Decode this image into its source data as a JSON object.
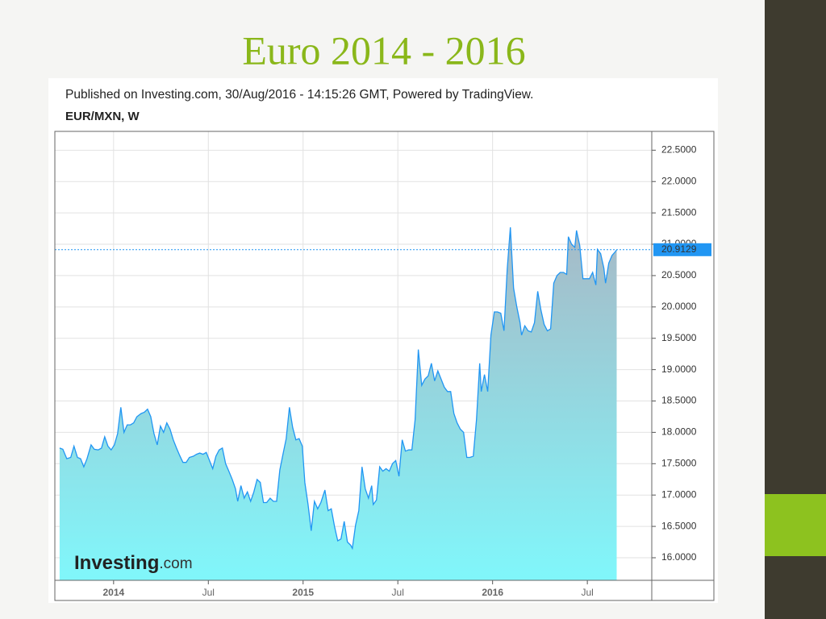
{
  "slide_title": "Euro 2014 - 2016",
  "chart_data": {
    "type": "area",
    "title": "Published on Investing.com, 30/Aug/2016 - 14:15:26 GMT, Powered by TradingView.",
    "subtitle": "EUR/MXN, W",
    "watermark": [
      "Investing",
      ".com"
    ],
    "color": "#2196f3",
    "grid": true,
    "xlim": [
      2013.69,
      2016.84
    ],
    "xticks": [
      {
        "value": 2014,
        "label": "2014"
      },
      {
        "value": 2014.5,
        "label": "Jul"
      },
      {
        "value": 2015,
        "label": "2015"
      },
      {
        "value": 2015.5,
        "label": "Jul"
      },
      {
        "value": 2016,
        "label": "2016"
      },
      {
        "value": 2016.5,
        "label": "Jul"
      }
    ],
    "ylim": [
      15.64,
      22.8
    ],
    "yticks": [
      {
        "value": 16,
        "label": "16.0000"
      },
      {
        "value": 16.5,
        "label": "16.5000"
      },
      {
        "value": 17,
        "label": "17.0000"
      },
      {
        "value": 17.5,
        "label": "17.5000"
      },
      {
        "value": 18,
        "label": "18.0000"
      },
      {
        "value": 18.5,
        "label": "18.5000"
      },
      {
        "value": 19,
        "label": "19.0000"
      },
      {
        "value": 19.5,
        "label": "19.5000"
      },
      {
        "value": 20,
        "label": "20.0000"
      },
      {
        "value": 20.5,
        "label": "20.5000"
      },
      {
        "value": 21,
        "label": "21.0000"
      },
      {
        "value": 21.5,
        "label": "21.5000"
      },
      {
        "value": 22,
        "label": "22.0000"
      },
      {
        "value": 22.5,
        "label": "22.5000"
      }
    ],
    "last_value": 20.9129,
    "x": [
      2013.715,
      2013.732,
      2013.753,
      2013.774,
      2013.791,
      2013.809,
      2013.826,
      2013.843,
      2013.86,
      2013.881,
      2013.898,
      2013.919,
      2013.936,
      2013.953,
      2013.97,
      2013.987,
      2014.004,
      2014.021,
      2014.038,
      2014.055,
      2014.072,
      2014.089,
      2014.106,
      2014.123,
      2014.145,
      2014.162,
      2014.179,
      2014.196,
      2014.213,
      2014.23,
      2014.247,
      2014.264,
      2014.281,
      2014.298,
      2014.315,
      2014.332,
      2014.349,
      2014.366,
      2014.383,
      2014.4,
      2014.421,
      2014.438,
      2014.455,
      2014.472,
      2014.489,
      2014.506,
      2014.523,
      2014.54,
      2014.557,
      2014.574,
      2014.591,
      2014.608,
      2014.626,
      2014.643,
      2014.655,
      2014.672,
      2014.689,
      2014.706,
      2014.723,
      2014.74,
      2014.757,
      2014.774,
      2014.791,
      2014.808,
      2014.826,
      2014.843,
      2014.86,
      2014.877,
      2014.894,
      2014.911,
      2014.928,
      2014.945,
      2014.962,
      2014.979,
      2014.996,
      2015.009,
      2015.026,
      2015.043,
      2015.06,
      2015.077,
      2015.094,
      2015.115,
      2015.132,
      2015.149,
      2015.166,
      2015.183,
      2015.2,
      2015.217,
      2015.234,
      2015.251,
      2015.26,
      2015.277,
      2015.294,
      2015.311,
      2015.328,
      2015.345,
      2015.362,
      2015.37,
      2015.387,
      2015.404,
      2015.421,
      2015.438,
      2015.455,
      2015.472,
      2015.489,
      2015.506,
      2015.523,
      2015.54,
      2015.557,
      2015.574,
      2015.591,
      2015.608,
      2015.626,
      2015.643,
      2015.66,
      2015.677,
      2015.694,
      2015.711,
      2015.728,
      2015.745,
      2015.762,
      2015.779,
      2015.796,
      2015.813,
      2015.83,
      2015.847,
      2015.864,
      2015.881,
      2015.898,
      2015.915,
      2015.932,
      2015.94,
      2015.957,
      2015.974,
      2015.991,
      2016.009,
      2016.026,
      2016.043,
      2016.06,
      2016.077,
      2016.094,
      2016.111,
      2016.128,
      2016.145,
      2016.153,
      2016.17,
      2016.187,
      2016.204,
      2016.221,
      2016.238,
      2016.255,
      2016.272,
      2016.289,
      2016.306,
      2016.323,
      2016.34,
      2016.357,
      2016.374,
      2016.391,
      2016.4,
      2016.417,
      2016.434,
      2016.443,
      2016.46,
      2016.477,
      2016.494,
      2016.511,
      2016.528,
      2016.545,
      2016.553,
      2016.57,
      2016.587,
      2016.596,
      2016.613,
      2016.63,
      2016.647,
      2016.655
    ],
    "values": [
      17.75,
      17.73,
      17.58,
      17.6,
      17.78,
      17.6,
      17.58,
      17.45,
      17.58,
      17.8,
      17.73,
      17.72,
      17.75,
      17.93,
      17.78,
      17.72,
      17.8,
      17.98,
      18.4,
      18.0,
      18.12,
      18.12,
      18.15,
      18.25,
      18.3,
      18.32,
      18.37,
      18.25,
      17.98,
      17.8,
      18.1,
      18.0,
      18.15,
      18.05,
      17.88,
      17.75,
      17.63,
      17.52,
      17.52,
      17.6,
      17.62,
      17.65,
      17.67,
      17.65,
      17.68,
      17.55,
      17.42,
      17.62,
      17.72,
      17.75,
      17.5,
      17.38,
      17.25,
      17.1,
      16.9,
      17.15,
      16.95,
      17.05,
      16.9,
      17.05,
      17.25,
      17.2,
      16.88,
      16.88,
      16.95,
      16.9,
      16.9,
      17.4,
      17.65,
      17.9,
      18.4,
      18.08,
      17.88,
      17.9,
      17.78,
      17.2,
      16.85,
      16.43,
      16.9,
      16.78,
      16.88,
      17.08,
      16.75,
      16.78,
      16.5,
      16.27,
      16.3,
      16.58,
      16.25,
      16.2,
      16.15,
      16.52,
      16.75,
      17.45,
      17.1,
      16.95,
      17.15,
      16.85,
      16.92,
      17.45,
      17.38,
      17.42,
      17.38,
      17.5,
      17.55,
      17.3,
      17.88,
      17.7,
      17.72,
      17.72,
      18.2,
      19.32,
      18.75,
      18.85,
      18.9,
      19.1,
      18.82,
      18.98,
      18.85,
      18.72,
      18.65,
      18.65,
      18.3,
      18.15,
      18.05,
      18.0,
      17.6,
      17.6,
      17.62,
      18.2,
      19.1,
      18.65,
      18.92,
      18.65,
      19.55,
      19.92,
      19.92,
      19.9,
      19.62,
      20.6,
      21.27,
      20.3,
      20.0,
      19.75,
      19.55,
      19.7,
      19.62,
      19.6,
      19.75,
      20.25,
      19.95,
      19.72,
      19.62,
      19.65,
      20.38,
      20.5,
      20.55,
      20.55,
      20.52,
      21.12,
      21.0,
      20.95,
      21.22,
      20.98,
      20.45,
      20.45,
      20.45,
      20.55,
      20.35,
      20.92,
      20.85,
      20.62,
      20.38,
      20.7,
      20.82,
      20.88,
      20.91
    ]
  }
}
